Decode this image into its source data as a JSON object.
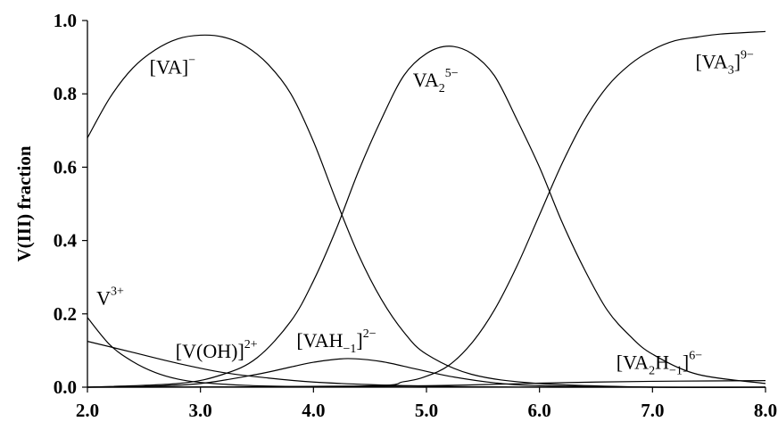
{
  "chart_data": {
    "type": "line",
    "ylabel": "V(III) fraction",
    "xlabel": "",
    "xlim": [
      2.0,
      8.0
    ],
    "ylim": [
      0.0,
      1.0
    ],
    "x_ticks": [
      2.0,
      3.0,
      4.0,
      5.0,
      6.0,
      7.0,
      8.0
    ],
    "x_tick_labels": [
      "2.0",
      "3.0",
      "4.0",
      "5.0",
      "6.0",
      "7.0",
      "8.0"
    ],
    "y_ticks": [
      0.0,
      0.2,
      0.4,
      0.6,
      0.8,
      1.0
    ],
    "y_tick_labels": [
      "0.0",
      "0.2",
      "0.4",
      "0.6",
      "0.8",
      "1.0"
    ],
    "grid": false,
    "legend": "none",
    "series": [
      {
        "label_parts": [
          [
            "base",
            "V"
          ],
          [
            "sup",
            "3+"
          ]
        ],
        "x": [
          2.0,
          2.2,
          2.4,
          2.6,
          2.8,
          3.0,
          3.4,
          3.8,
          4.2,
          5.0
        ],
        "y": [
          0.19,
          0.115,
          0.07,
          0.04,
          0.022,
          0.013,
          0.005,
          0.002,
          0.001,
          0.0
        ]
      },
      {
        "label_parts": [
          [
            "base",
            "[V(OH)]"
          ],
          [
            "sup",
            "2+"
          ]
        ],
        "x": [
          2.0,
          2.4,
          2.8,
          3.2,
          3.6,
          4.0,
          4.5,
          5.0,
          5.5,
          6.0,
          7.0,
          8.0
        ],
        "y": [
          0.125,
          0.095,
          0.065,
          0.04,
          0.025,
          0.014,
          0.007,
          0.003,
          0.001,
          0.0,
          0.0,
          0.0
        ]
      },
      {
        "label_parts": [
          [
            "base",
            "[VA]"
          ],
          [
            "sup",
            "−"
          ]
        ],
        "x": [
          2.0,
          2.2,
          2.4,
          2.6,
          2.8,
          3.0,
          3.2,
          3.4,
          3.6,
          3.8,
          4.0,
          4.2,
          4.4,
          4.6,
          4.8,
          5.0,
          5.4,
          6.0,
          7.0,
          8.0
        ],
        "y": [
          0.68,
          0.79,
          0.87,
          0.92,
          0.95,
          0.96,
          0.955,
          0.93,
          0.88,
          0.8,
          0.67,
          0.51,
          0.36,
          0.24,
          0.15,
          0.09,
          0.035,
          0.01,
          0.0,
          0.0
        ]
      },
      {
        "label_parts": [
          [
            "base",
            "[VAH"
          ],
          [
            "sub",
            "−1"
          ],
          [
            "base",
            "]"
          ],
          [
            "sup",
            "2−"
          ]
        ],
        "x": [
          2.0,
          2.5,
          3.0,
          3.5,
          3.8,
          4.0,
          4.3,
          4.6,
          4.9,
          5.2,
          5.6,
          6.0,
          7.0,
          8.0
        ],
        "y": [
          0.0,
          0.002,
          0.01,
          0.035,
          0.055,
          0.068,
          0.078,
          0.07,
          0.05,
          0.03,
          0.012,
          0.004,
          0.0,
          0.0
        ]
      },
      {
        "label_parts": [
          [
            "base",
            "VA"
          ],
          [
            "sub",
            "2"
          ],
          [
            "sup",
            "5−"
          ]
        ],
        "x": [
          2.0,
          2.8,
          3.2,
          3.5,
          3.8,
          4.0,
          4.2,
          4.4,
          4.6,
          4.8,
          5.0,
          5.2,
          5.4,
          5.6,
          5.8,
          6.0,
          6.2,
          6.4,
          6.6,
          6.8,
          7.0,
          7.4,
          8.0
        ],
        "y": [
          0.0,
          0.01,
          0.035,
          0.08,
          0.18,
          0.29,
          0.43,
          0.59,
          0.73,
          0.85,
          0.91,
          0.93,
          0.91,
          0.85,
          0.73,
          0.6,
          0.45,
          0.32,
          0.21,
          0.14,
          0.09,
          0.035,
          0.01
        ]
      },
      {
        "label_parts": [
          [
            "base",
            "[VA"
          ],
          [
            "sub",
            "2"
          ],
          [
            "base",
            "H"
          ],
          [
            "sub",
            "−1"
          ],
          [
            "base",
            "]"
          ],
          [
            "sup",
            "6−"
          ]
        ],
        "x": [
          2.0,
          4.0,
          5.0,
          5.5,
          6.0,
          6.5,
          7.0,
          7.5,
          8.0
        ],
        "y": [
          0.0,
          0.001,
          0.004,
          0.007,
          0.011,
          0.014,
          0.016,
          0.017,
          0.018
        ]
      },
      {
        "label_parts": [
          [
            "base",
            "[VA"
          ],
          [
            "sub",
            "3"
          ],
          [
            "base",
            "]"
          ],
          [
            "sup",
            "9−"
          ]
        ],
        "x": [
          2.0,
          4.4,
          4.8,
          5.0,
          5.2,
          5.4,
          5.6,
          5.8,
          6.0,
          6.2,
          6.4,
          6.6,
          6.8,
          7.0,
          7.2,
          7.4,
          7.6,
          8.0
        ],
        "y": [
          0.0,
          0.003,
          0.015,
          0.03,
          0.06,
          0.12,
          0.21,
          0.33,
          0.47,
          0.61,
          0.73,
          0.82,
          0.88,
          0.92,
          0.945,
          0.955,
          0.963,
          0.97
        ]
      }
    ],
    "annotations": [
      {
        "series": 0,
        "x": 2.08,
        "y": 0.225
      },
      {
        "series": 1,
        "x": 2.78,
        "y": 0.08
      },
      {
        "series": 2,
        "x": 2.55,
        "y": 0.855
      },
      {
        "series": 3,
        "x": 3.85,
        "y": 0.11
      },
      {
        "series": 4,
        "x": 4.88,
        "y": 0.82
      },
      {
        "series": 5,
        "x": 6.68,
        "y": 0.05
      },
      {
        "series": 6,
        "x": 7.38,
        "y": 0.87
      }
    ]
  }
}
